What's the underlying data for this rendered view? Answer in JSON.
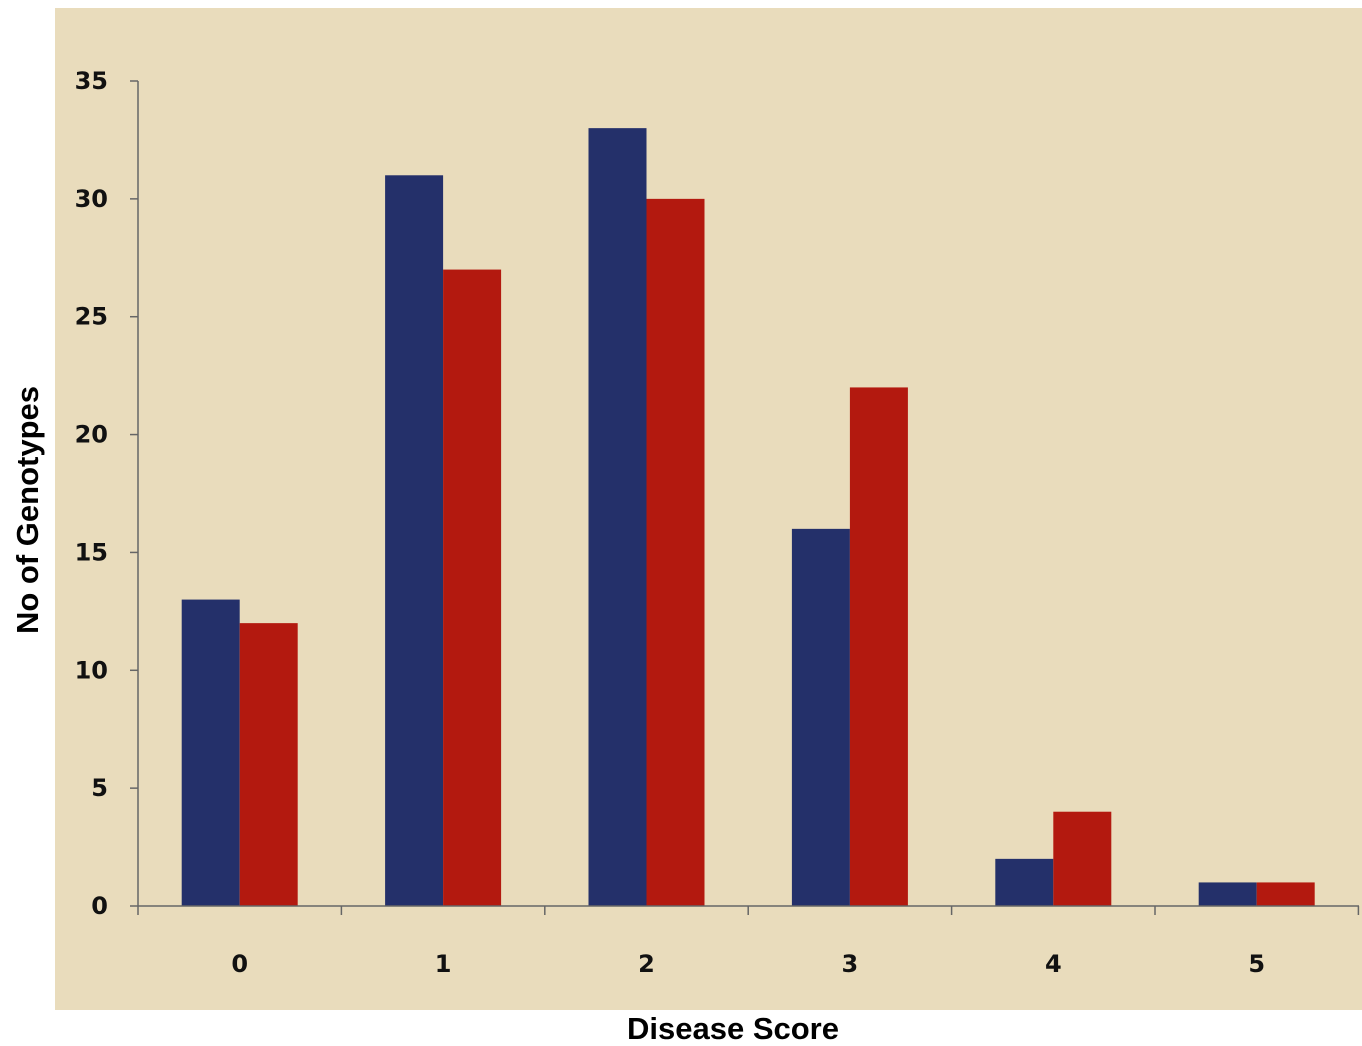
{
  "colors": {
    "panel_background": "#e9dcbc",
    "axis": "#666666",
    "series": [
      "#24306a",
      "#b3190f"
    ]
  },
  "chart_data": {
    "type": "bar",
    "title": "",
    "xlabel": "Disease Score",
    "ylabel": "No of Genotypes",
    "categories": [
      "0",
      "1",
      "2",
      "3",
      "4",
      "5"
    ],
    "series": [
      {
        "values": [
          13,
          31,
          33,
          16,
          2,
          1
        ]
      },
      {
        "values": [
          12,
          27,
          30,
          22,
          4,
          1
        ]
      }
    ],
    "ylim": [
      0,
      35
    ],
    "yticks": [
      0,
      5,
      10,
      15,
      20,
      25,
      30,
      35
    ],
    "ytick_labels": [
      "0",
      "5",
      "10",
      "15",
      "20",
      "25",
      "30",
      "35"
    ],
    "grid": false,
    "legend": "none"
  }
}
